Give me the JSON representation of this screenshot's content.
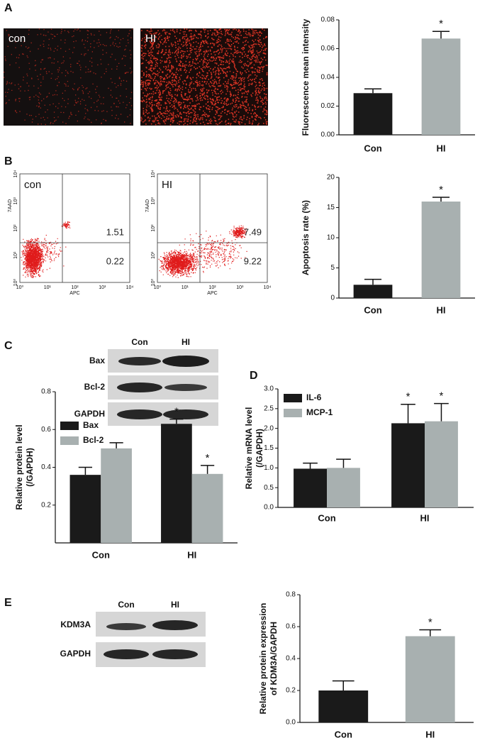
{
  "letters": [
    "A",
    "B",
    "C",
    "D",
    "E"
  ],
  "fluorescence": {
    "images": [
      "con",
      "HI"
    ]
  },
  "flow": {
    "plots": [
      {
        "label": "con",
        "quadrants": [
          1.51,
          0.22
        ]
      },
      {
        "label": "HI",
        "quadrants": [
          7.49,
          9.22
        ]
      }
    ],
    "x_axis": "APC",
    "y_axis": "7AAD",
    "ticks": [
      "10⁰",
      "10¹",
      "10²",
      "10³",
      "10⁴"
    ]
  },
  "blot_c": {
    "columns": [
      "Con",
      "HI"
    ],
    "rows": [
      "Bax",
      "Bcl-2",
      "GAPDH"
    ]
  },
  "blot_e": {
    "columns": [
      "Con",
      "HI"
    ],
    "rows": [
      "KDM3A",
      "GAPDH"
    ]
  },
  "chart_data": [
    {
      "type": "bar",
      "ylabel": [
        "Fluorescence mean intensity"
      ],
      "categories": [
        "Con",
        "HI"
      ],
      "values": [
        0.029,
        0.067
      ],
      "errors": [
        0.003,
        0.005
      ],
      "annotations": [
        null,
        "*"
      ],
      "colors": [
        "#1a1a1a",
        "#a8b0b0"
      ],
      "ylim": [
        0,
        0.08
      ],
      "yticks": [
        {
          "value": 0,
          "label": "0.00"
        },
        0.02,
        0.04,
        0.06,
        0.08
      ]
    },
    {
      "type": "bar",
      "ylabel": [
        "Apoptosis rate (%)"
      ],
      "categories": [
        "Con",
        "HI"
      ],
      "values": [
        2.2,
        16.0
      ],
      "errors": [
        0.9,
        0.7
      ],
      "annotations": [
        null,
        "*"
      ],
      "colors": [
        "#1a1a1a",
        "#a8b0b0"
      ],
      "ylim": [
        0,
        20
      ],
      "yticks": [
        0,
        5,
        10,
        15,
        20
      ]
    },
    {
      "type": "grouped_bar",
      "ylabel": [
        "Relative protein level",
        "(/GAPDH)"
      ],
      "categories": [
        "Con",
        "HI"
      ],
      "series": [
        {
          "name": "Bax",
          "color": "#1a1a1a",
          "values": [
            0.36,
            0.63
          ],
          "errors": [
            0.04,
            0.025
          ],
          "annotations": [
            null,
            "*"
          ]
        },
        {
          "name": "Bcl-2",
          "color": "#a8b0b0",
          "values": [
            0.5,
            0.365
          ],
          "errors": [
            0.03,
            0.045
          ],
          "annotations": [
            null,
            "*"
          ]
        }
      ],
      "ylim": [
        0,
        0.8
      ],
      "yticks": [
        0.2,
        0.4,
        0.6,
        0.8
      ],
      "legend": "upper left"
    },
    {
      "type": "grouped_bar",
      "ylabel": [
        "Relative mRNA level",
        "(/GAPDH)"
      ],
      "categories": [
        "Con",
        "HI"
      ],
      "series": [
        {
          "name": "IL-6",
          "color": "#1a1a1a",
          "values": [
            0.98,
            2.13
          ],
          "errors": [
            0.14,
            0.48
          ],
          "annotations": [
            null,
            "*"
          ]
        },
        {
          "name": "MCP-1",
          "color": "#a8b0b0",
          "values": [
            1.0,
            2.18
          ],
          "errors": [
            0.22,
            0.45
          ],
          "annotations": [
            null,
            "*"
          ]
        }
      ],
      "ylim": [
        0,
        3
      ],
      "yticks": [
        {
          "value": 0,
          "label": "0.0"
        },
        0.5,
        {
          "value": 1,
          "label": "1.0"
        },
        1.5,
        {
          "value": 2,
          "label": "2.0"
        },
        2.5,
        {
          "value": 3,
          "label": "3.0"
        }
      ],
      "legend": "upper left"
    },
    {
      "type": "bar",
      "ylabel": [
        "Relative protein expression",
        "of KDM3A/GAPDH"
      ],
      "categories": [
        "Con",
        "HI"
      ],
      "values": [
        0.2,
        0.54
      ],
      "errors": [
        0.06,
        0.04
      ],
      "annotations": [
        null,
        "*"
      ],
      "colors": [
        "#1a1a1a",
        "#a8b0b0"
      ],
      "ylim": [
        0,
        0.8
      ],
      "yticks": [
        {
          "value": 0,
          "label": "0.0"
        },
        0.2,
        0.4,
        0.6,
        0.8
      ]
    }
  ]
}
